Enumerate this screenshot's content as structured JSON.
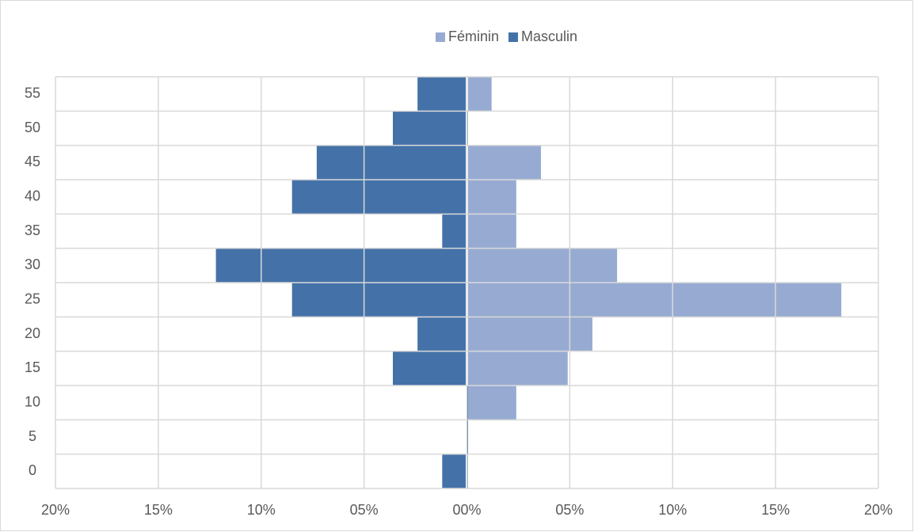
{
  "chart_data": {
    "type": "bar",
    "categories": [
      "0",
      "5",
      "10",
      "15",
      "20",
      "25",
      "30",
      "35",
      "40",
      "45",
      "50",
      "55"
    ],
    "series": [
      {
        "name": "Féminin",
        "color": "#97abd2",
        "values": [
          0,
          0,
          2.4,
          4.9,
          6.1,
          18.2,
          7.3,
          2.4,
          2.4,
          3.6,
          0,
          1.2
        ]
      },
      {
        "name": "Masculin",
        "color": "#4472a8",
        "values": [
          -1.2,
          0,
          0,
          -3.6,
          -2.4,
          -8.5,
          -12.2,
          -1.2,
          -8.5,
          -7.3,
          -3.6,
          -2.4
        ]
      }
    ],
    "xlim": [
      -20,
      20
    ],
    "xticks": [
      {
        "value": -20,
        "label": "20%"
      },
      {
        "value": -15,
        "label": "15%"
      },
      {
        "value": -10,
        "label": "10%"
      },
      {
        "value": -5,
        "label": "05%"
      },
      {
        "value": 0,
        "label": "00%"
      },
      {
        "value": 5,
        "label": "05%"
      },
      {
        "value": 10,
        "label": "10%"
      },
      {
        "value": 15,
        "label": "15%"
      },
      {
        "value": 20,
        "label": "20%"
      }
    ],
    "grid": true,
    "legend": "top"
  }
}
